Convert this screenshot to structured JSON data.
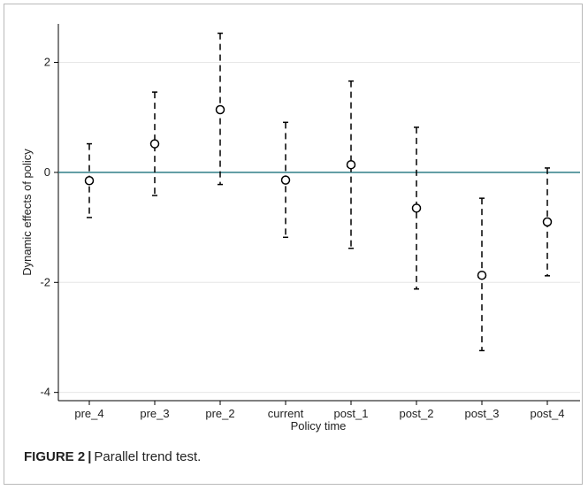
{
  "chart_data": {
    "type": "scatter",
    "subtype": "coefficient-plot-with-confidence-intervals",
    "xlabel": "Policy time",
    "ylabel": "Dynamic effects of policy",
    "categories": [
      "pre_4",
      "pre_3",
      "pre_2",
      "current",
      "post_1",
      "post_2",
      "post_3",
      "post_4"
    ],
    "series": [
      {
        "estimate": [
          -0.15,
          0.52,
          1.14,
          -0.14,
          0.14,
          -0.65,
          -1.87,
          -0.9
        ],
        "ci_lower": [
          -0.82,
          -0.42,
          -0.22,
          -1.18,
          -1.38,
          -2.12,
          -3.24,
          -1.88
        ],
        "ci_upper": [
          0.52,
          1.46,
          2.53,
          0.91,
          1.66,
          0.82,
          -0.47,
          0.08
        ]
      }
    ],
    "yticks": [
      2,
      0,
      -2,
      -4
    ],
    "ylim": [
      -4.15,
      2.7
    ],
    "reference_line": 0,
    "grid": true,
    "colors": {
      "reference_line": "#2e7d87",
      "markers": "#000000",
      "grid": "#e6e6e6"
    }
  },
  "caption": {
    "label": "FIGURE 2",
    "separator": "|",
    "text": "Parallel trend test."
  }
}
